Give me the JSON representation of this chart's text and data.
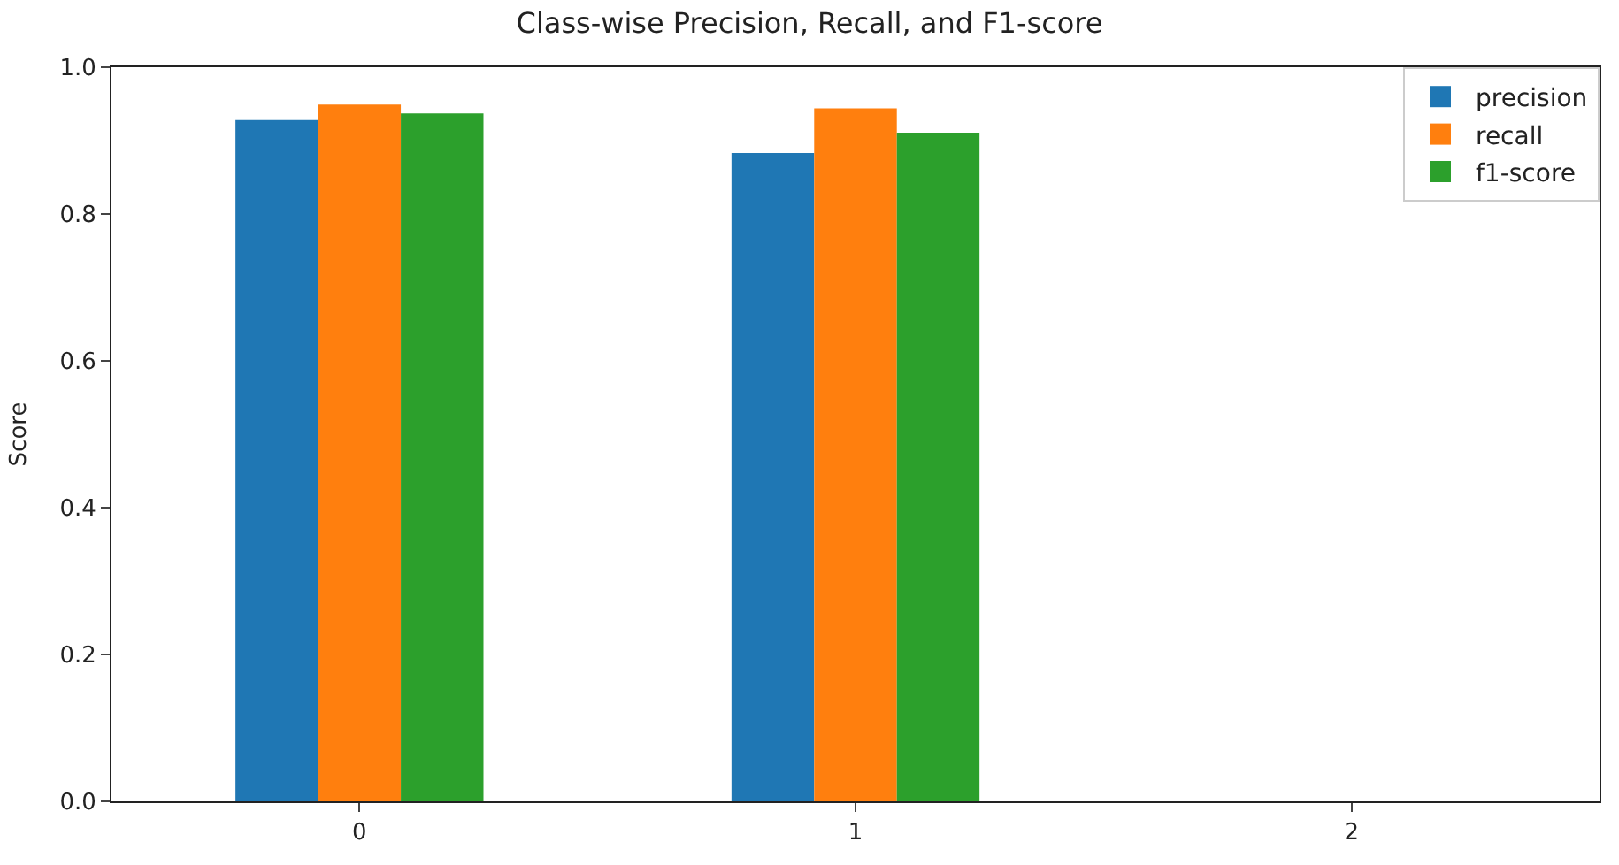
{
  "chart_data": {
    "type": "bar",
    "title": "Class-wise Precision, Recall, and F1-score",
    "ylabel": "Score",
    "categories": [
      "0",
      "1",
      "2"
    ],
    "series": [
      {
        "name": "precision",
        "color": "#1f77b4",
        "values": [
          0.928,
          0.883,
          null
        ]
      },
      {
        "name": "recall",
        "color": "#ff7f0e",
        "values": [
          0.949,
          0.944,
          null
        ]
      },
      {
        "name": "f1-score",
        "color": "#2ca02c",
        "values": [
          0.937,
          0.911,
          null
        ]
      }
    ],
    "ylim": [
      0.0,
      1.0
    ],
    "yticks": [
      {
        "value": 0.0,
        "label": "0.0"
      },
      {
        "value": 0.2,
        "label": "0.2"
      },
      {
        "value": 0.4,
        "label": "0.4"
      },
      {
        "value": 0.6,
        "label": "0.6"
      },
      {
        "value": 0.8,
        "label": "0.8"
      },
      {
        "value": 1.0,
        "label": "1.0"
      }
    ],
    "legend": "top right"
  }
}
